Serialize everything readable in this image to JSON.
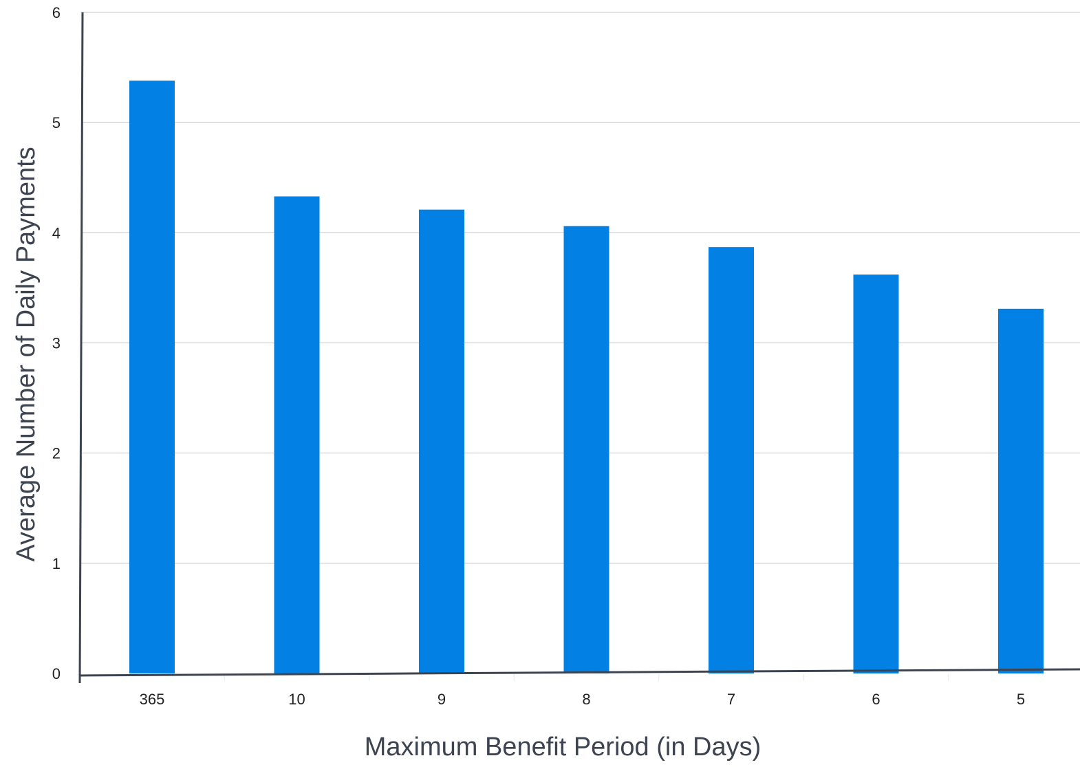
{
  "chart_data": {
    "type": "bar",
    "xlabel": "Maximum Benefit Period (in Days)",
    "ylabel": "Average Number of Daily Payments",
    "categories": [
      "365",
      "10",
      "9",
      "8",
      "7",
      "6",
      "5"
    ],
    "values": [
      5.38,
      4.33,
      4.21,
      4.06,
      3.87,
      3.62,
      3.31
    ],
    "ylim": [
      0,
      6
    ],
    "yticks": [
      "0",
      "1",
      "2",
      "3",
      "4",
      "5",
      "6"
    ],
    "grid": true,
    "bar_color": "#0280e3",
    "axis_color": "#3d4450",
    "grid_color": "#c4c4c4"
  }
}
